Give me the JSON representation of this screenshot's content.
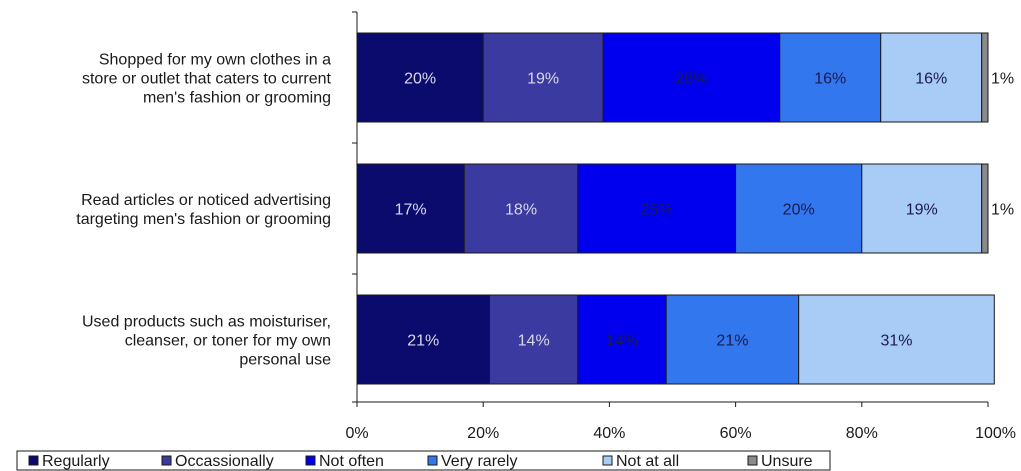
{
  "chart_data": {
    "type": "bar",
    "orientation": "horizontal",
    "stacked": true,
    "title": "",
    "xlabel": "",
    "ylabel": "",
    "xlim": [
      0,
      100
    ],
    "x_ticks": [
      "0%",
      "20%",
      "40%",
      "60%",
      "80%",
      "100%"
    ],
    "grid": false,
    "legend_position": "bottom",
    "categories": [
      [
        "Shopped for my own clothes in a",
        "store or outlet that caters to current",
        "men's fashion or grooming"
      ],
      [
        "Read articles or noticed advertising",
        "targeting men's fashion or grooming"
      ],
      [
        "Used products such as moisturiser,",
        "cleanser, or toner for my own",
        "personal use"
      ]
    ],
    "series": [
      {
        "name": "Regularly",
        "color": "#0b0b6e",
        "label_color": "#d8d8e8",
        "values": [
          20,
          17,
          21
        ],
        "labels": [
          "20%",
          "17%",
          "21%"
        ]
      },
      {
        "name": "Occassionally",
        "color": "#3a3aa0",
        "label_color": "#d8d8e8",
        "values": [
          19,
          18,
          14
        ],
        "labels": [
          "19%",
          "18%",
          "14%"
        ]
      },
      {
        "name": "Not often",
        "color": "#0000ee",
        "label_color": "#1a1a50",
        "values": [
          28,
          25,
          14
        ],
        "labels": [
          "28%",
          "25%",
          "14%"
        ]
      },
      {
        "name": "Very rarely",
        "color": "#3377ee",
        "label_color": "#1a1a50",
        "values": [
          16,
          20,
          21
        ],
        "labels": [
          "16%",
          "20%",
          "21%"
        ]
      },
      {
        "name": "Not at all",
        "color": "#a8ccf6",
        "label_color": "#1a1a50",
        "values": [
          16,
          19,
          31
        ],
        "labels": [
          "16%",
          "19%",
          "31%"
        ]
      },
      {
        "name": "Unsure",
        "color": "#8a8a8a",
        "label_color": "#1a1a1a",
        "values": [
          1,
          1,
          0
        ],
        "labels": [
          "1%",
          "1%",
          ""
        ]
      }
    ]
  }
}
